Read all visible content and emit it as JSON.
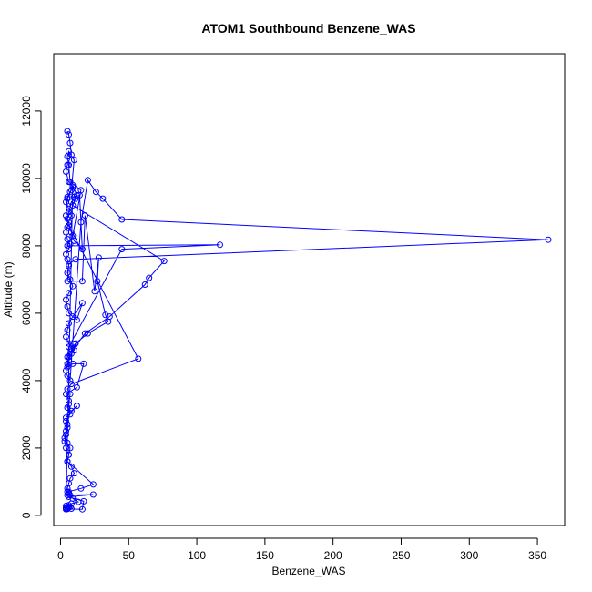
{
  "chart_data": {
    "type": "line",
    "title": "ATOM1 Southbound Benzene_WAS",
    "xlabel": "Benzene_WAS",
    "ylabel": "Altitude (m)",
    "xlim": [
      -5,
      370
    ],
    "ylim": [
      -300,
      13700
    ],
    "xticks": [
      0,
      50,
      100,
      150,
      200,
      250,
      300,
      350
    ],
    "yticks": [
      0,
      2000,
      4000,
      6000,
      8000,
      10000,
      12000
    ],
    "xtick_labels": [
      "0",
      "50",
      "100",
      "150",
      "200",
      "250",
      "300",
      "350"
    ],
    "ytick_labels": [
      "0",
      "2000",
      "4000",
      "6000",
      "8000",
      "10000",
      "12000"
    ],
    "grid": false,
    "legend": "none",
    "marker": "open-circle",
    "series_color": "#0000ff",
    "series": [
      {
        "x": [
          5,
          6,
          7,
          8,
          5,
          4,
          6,
          9,
          7,
          5,
          4,
          6,
          8,
          6,
          5,
          4,
          5,
          7,
          6,
          4,
          5,
          6,
          5,
          7,
          9,
          6,
          4,
          5,
          6,
          12,
          16,
          9,
          6,
          5,
          4,
          6,
          8,
          11,
          10,
          6,
          5,
          4,
          5,
          7,
          15,
          20,
          26,
          31,
          45,
          358,
          11,
          6,
          5,
          16,
          18,
          25,
          28,
          27,
          33,
          35,
          20,
          11,
          8,
          6,
          5,
          9,
          17,
          12,
          4,
          6,
          5,
          8,
          12,
          4,
          5,
          4,
          3,
          5,
          7,
          6,
          5,
          8,
          10,
          7,
          6,
          5,
          6,
          7,
          9,
          13,
          8,
          6,
          7,
          8,
          4,
          5,
          4,
          6,
          5,
          4,
          9,
          12,
          8,
          6,
          5,
          6,
          8,
          10,
          16,
          14,
          10,
          11,
          9,
          76,
          65,
          62,
          36,
          18,
          5,
          6,
          45,
          117,
          5,
          9,
          15,
          7,
          6,
          5,
          6,
          10,
          8,
          5,
          4,
          6,
          57,
          8,
          5,
          7,
          6,
          7,
          4,
          5,
          4,
          3,
          4,
          6,
          5,
          24,
          15,
          5,
          6,
          5,
          24,
          6,
          17,
          16,
          5,
          4,
          5
        ],
        "y": [
          11400,
          11300,
          11050,
          10700,
          10400,
          10200,
          9900,
          9750,
          9600,
          9450,
          9300,
          9100,
          8900,
          8700,
          8550,
          8400,
          8200,
          8050,
          7900,
          7750,
          7600,
          7400,
          7200,
          7000,
          6800,
          6600,
          6400,
          6200,
          6000,
          5800,
          6300,
          5900,
          5700,
          5500,
          5300,
          5100,
          4950,
          5100,
          4900,
          4700,
          4500,
          4300,
          4150,
          4000,
          8700,
          9950,
          9600,
          9400,
          8780,
          8180,
          7600,
          7450,
          6950,
          6950,
          8900,
          6650,
          7650,
          6950,
          5950,
          5750,
          5400,
          5100,
          4800,
          4600,
          4400,
          4500,
          4500,
          3800,
          3600,
          3400,
          3200,
          3100,
          3250,
          2900,
          2700,
          2500,
          2300,
          2150,
          2000,
          1800,
          1600,
          1450,
          1250,
          1100,
          950,
          800,
          700,
          600,
          500,
          400,
          350,
          300,
          250,
          200,
          180,
          200,
          220,
          240,
          260,
          280,
          9800,
          9500,
          9300,
          9000,
          8800,
          8600,
          8400,
          8150,
          7900,
          9500,
          9450,
          9400,
          9200,
          7550,
          7050,
          6850,
          5900,
          5400,
          4700,
          5000,
          7900,
          8030,
          8000,
          8300,
          9650,
          9900,
          10400,
          10650,
          10800,
          10550,
          9650,
          9400,
          8900,
          8600,
          4650,
          3900,
          3750,
          3600,
          3300,
          3000,
          2800,
          2600,
          2400,
          2200,
          2000,
          1800,
          1600,
          920,
          800,
          700,
          650,
          600,
          620,
          550,
          420,
          180,
          190,
          200,
          210
        ],
        "name": ""
      }
    ]
  }
}
